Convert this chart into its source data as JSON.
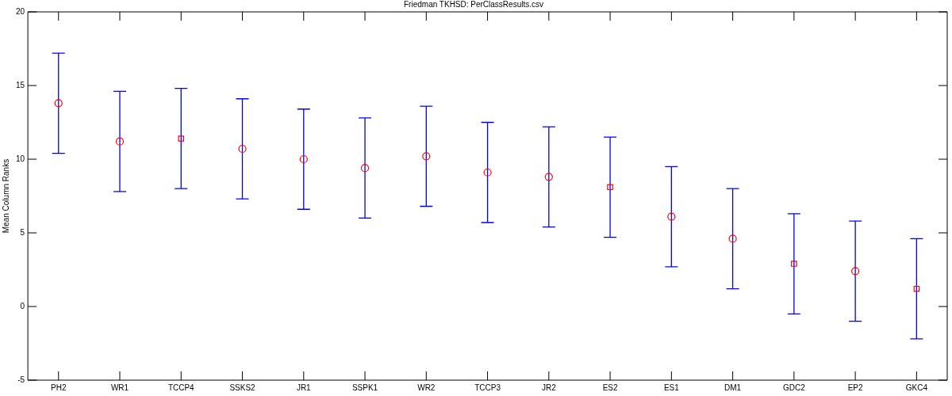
{
  "chart_data": {
    "type": "scatter",
    "title": "Friedman TKHSD: PerClassResults.csv",
    "ylabel": "Mean Column Ranks",
    "categories": [
      "PH2",
      "WR1",
      "TCCP4",
      "SSKS2",
      "JR1",
      "SSPK1",
      "WR2",
      "TCCP3",
      "JR2",
      "ES2",
      "ES1",
      "DM1",
      "GDC2",
      "EP2",
      "GKC4"
    ],
    "series": [
      {
        "color": "#ff0000",
        "marker": "circle",
        "values": [
          13.8,
          11.2,
          null,
          10.7,
          10.0,
          9.4,
          10.2,
          9.1,
          8.8,
          null,
          6.1,
          4.6,
          null,
          2.4,
          null
        ],
        "errors": [
          3.4,
          3.4,
          null,
          3.4,
          3.4,
          3.4,
          3.4,
          3.4,
          3.4,
          null,
          3.4,
          3.4,
          null,
          3.4,
          null
        ]
      },
      {
        "color": "#ff0000",
        "marker": "square",
        "values": [
          null,
          null,
          11.4,
          null,
          null,
          null,
          null,
          null,
          null,
          8.1,
          null,
          null,
          2.9,
          null,
          1.2
        ],
        "errors": [
          null,
          null,
          3.4,
          null,
          null,
          null,
          null,
          null,
          null,
          3.4,
          null,
          null,
          3.4,
          null,
          3.4
        ]
      }
    ],
    "ylim": [
      -5,
      20
    ],
    "yticks": [
      -5,
      0,
      5,
      10,
      15,
      20
    ]
  }
}
